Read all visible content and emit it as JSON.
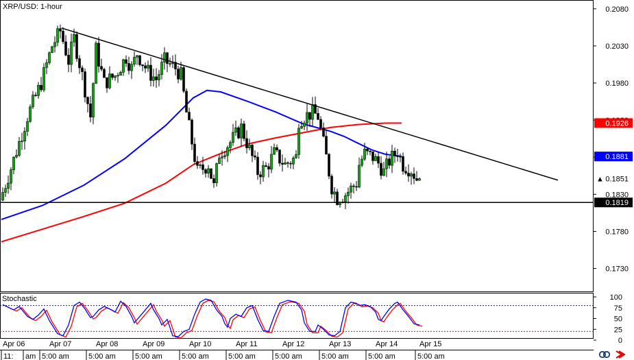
{
  "chart_data": {
    "type": "candlestick",
    "title": "XRP/USD: 1-hour",
    "price_axis": {
      "ticks": [
        0.208,
        0.203,
        0.198,
        0.193,
        0.188,
        0.183,
        0.178,
        0.173
      ],
      "tick_labels": [
        "0.2080",
        "0.2030",
        "0.1980",
        "0.1930",
        "0.1880",
        "0.1830",
        "0.1780",
        "0.1730"
      ],
      "range": [
        0.17,
        0.209
      ]
    },
    "price_tags": [
      {
        "label": "0.1926",
        "value": 0.1926,
        "bg": "#ff0000",
        "fg": "#ffffff"
      },
      {
        "label": "0.1881",
        "value": 0.1881,
        "bg": "#0000ff",
        "fg": "#ffffff"
      },
      {
        "label": "0.1851",
        "value": 0.1851,
        "bg": "#ffffff",
        "fg": "#000000",
        "marker": "▲"
      },
      {
        "label": "0.1819",
        "value": 0.1819,
        "bg": "#000000",
        "fg": "#ffffff"
      }
    ],
    "bars": 228,
    "trendline": {
      "from": {
        "bar": 22,
        "price": 0.2054
      },
      "to": {
        "bar": 203,
        "price": 0.1849
      },
      "color": "#000000"
    },
    "support": {
      "price": 0.1819,
      "color": "#000000"
    },
    "moving_averages": [
      {
        "color": "#0000ff",
        "last": 0.1881,
        "points": [
          [
            0,
            0.1796
          ],
          [
            15,
            0.1815
          ],
          [
            30,
            0.1842
          ],
          [
            45,
            0.1878
          ],
          [
            60,
            0.1923
          ],
          [
            70,
            0.196
          ],
          [
            75,
            0.197
          ],
          [
            80,
            0.1968
          ],
          [
            90,
            0.1955
          ],
          [
            100,
            0.1941
          ],
          [
            110,
            0.1925
          ],
          [
            120,
            0.1915
          ],
          [
            125,
            0.1908
          ],
          [
            135,
            0.189
          ],
          [
            140,
            0.1884
          ],
          [
            146,
            0.1881
          ]
        ]
      },
      {
        "color": "#ff0000",
        "last": 0.1926,
        "points": [
          [
            0,
            0.1766
          ],
          [
            15,
            0.1783
          ],
          [
            30,
            0.18
          ],
          [
            45,
            0.1818
          ],
          [
            60,
            0.1845
          ],
          [
            70,
            0.187
          ],
          [
            80,
            0.1885
          ],
          [
            90,
            0.1898
          ],
          [
            100,
            0.1906
          ],
          [
            110,
            0.1913
          ],
          [
            120,
            0.192
          ],
          [
            130,
            0.1924
          ],
          [
            140,
            0.1926
          ],
          [
            146,
            0.1926
          ]
        ]
      }
    ],
    "price_path": [
      [
        0,
        0.1822
      ],
      [
        4,
        0.1865
      ],
      [
        10,
        0.1935
      ],
      [
        15,
        0.198
      ],
      [
        19,
        0.203
      ],
      [
        22,
        0.205
      ],
      [
        25,
        0.201
      ],
      [
        27,
        0.204
      ],
      [
        30,
        0.199
      ],
      [
        33,
        0.1935
      ],
      [
        35,
        0.2025
      ],
      [
        38,
        0.198
      ],
      [
        42,
        0.199
      ],
      [
        46,
        0.2015
      ],
      [
        48,
        0.2
      ],
      [
        50,
        0.202
      ],
      [
        54,
        0.1995
      ],
      [
        57,
        0.1985
      ],
      [
        60,
        0.201
      ],
      [
        64,
        0.2
      ],
      [
        66,
        0.199
      ],
      [
        68,
        0.194
      ],
      [
        72,
        0.186
      ],
      [
        76,
        0.187
      ],
      [
        78,
        0.184
      ],
      [
        80,
        0.1885
      ],
      [
        84,
        0.19
      ],
      [
        88,
        0.192
      ],
      [
        91,
        0.189
      ],
      [
        94,
        0.186
      ],
      [
        97,
        0.1865
      ],
      [
        100,
        0.1885
      ],
      [
        104,
        0.187
      ],
      [
        108,
        0.188
      ],
      [
        109,
        0.193
      ],
      [
        111,
        0.1935
      ],
      [
        114,
        0.194
      ],
      [
        116,
        0.1935
      ],
      [
        119,
        0.188
      ],
      [
        121,
        0.184
      ],
      [
        123,
        0.1825
      ],
      [
        126,
        0.183
      ],
      [
        130,
        0.1845
      ],
      [
        131,
        0.187
      ],
      [
        133,
        0.1885
      ],
      [
        136,
        0.188
      ],
      [
        138,
        0.1872
      ],
      [
        140,
        0.186
      ],
      [
        142,
        0.1875
      ],
      [
        145,
        0.1888
      ],
      [
        147,
        0.187
      ],
      [
        150,
        0.1863
      ],
      [
        152,
        0.1851
      ]
    ],
    "stochastic": {
      "label": "Stochastic",
      "ticks": [
        100,
        75,
        50,
        25,
        0
      ],
      "tick_labels": [
        "100",
        "75",
        "50",
        "25",
        "0"
      ],
      "overbought": 80,
      "oversold": 20,
      "k_color": "#0000ff",
      "d_color": "#ff0000",
      "k": [
        [
          0,
          82
        ],
        [
          4,
          70
        ],
        [
          6,
          78
        ],
        [
          9,
          55
        ],
        [
          11,
          48
        ],
        [
          13,
          58
        ],
        [
          15,
          72
        ],
        [
          17,
          45
        ],
        [
          19,
          25
        ],
        [
          20,
          15
        ],
        [
          22,
          10
        ],
        [
          24,
          35
        ],
        [
          26,
          80
        ],
        [
          28,
          88
        ],
        [
          30,
          72
        ],
        [
          32,
          52
        ],
        [
          33,
          55
        ],
        [
          35,
          70
        ],
        [
          37,
          78
        ],
        [
          39,
          72
        ],
        [
          41,
          65
        ],
        [
          43,
          90
        ],
        [
          45,
          78
        ],
        [
          47,
          55
        ],
        [
          48,
          40
        ],
        [
          50,
          55
        ],
        [
          52,
          70
        ],
        [
          54,
          85
        ],
        [
          55,
          70
        ],
        [
          57,
          50
        ],
        [
          58,
          35
        ],
        [
          60,
          48
        ],
        [
          62,
          10
        ],
        [
          64,
          8
        ],
        [
          66,
          20
        ],
        [
          68,
          25
        ],
        [
          70,
          60
        ],
        [
          72,
          88
        ],
        [
          74,
          95
        ],
        [
          76,
          92
        ],
        [
          78,
          70
        ],
        [
          80,
          55
        ],
        [
          81,
          38
        ],
        [
          82,
          30
        ],
        [
          83,
          50
        ],
        [
          85,
          60
        ],
        [
          87,
          55
        ],
        [
          89,
          75
        ],
        [
          91,
          80
        ],
        [
          93,
          48
        ],
        [
          95,
          22
        ],
        [
          97,
          20
        ],
        [
          99,
          55
        ],
        [
          101,
          85
        ],
        [
          104,
          92
        ],
        [
          107,
          88
        ],
        [
          109,
          70
        ],
        [
          110,
          40
        ],
        [
          112,
          20
        ],
        [
          114,
          20
        ],
        [
          115,
          35
        ],
        [
          117,
          25
        ],
        [
          119,
          12
        ],
        [
          121,
          10
        ],
        [
          123,
          20
        ],
        [
          125,
          75
        ],
        [
          127,
          88
        ],
        [
          129,
          85
        ],
        [
          130,
          80
        ],
        [
          132,
          82
        ],
        [
          134,
          78
        ],
        [
          136,
          65
        ],
        [
          137,
          48
        ],
        [
          138,
          45
        ],
        [
          139,
          55
        ],
        [
          141,
          72
        ],
        [
          143,
          85
        ],
        [
          144,
          88
        ],
        [
          146,
          70
        ],
        [
          148,
          55
        ],
        [
          150,
          38
        ],
        [
          152,
          35
        ]
      ]
    },
    "time_axis": {
      "day_labels": [
        "Apr 06",
        "Apr 07",
        "Apr 08",
        "Apr 09",
        "Apr 10",
        "Apr 11",
        "Apr 12",
        "Apr 13",
        "Apr 14",
        "Apr 15"
      ],
      "day_bars": [
        0,
        17,
        34,
        51,
        68,
        85,
        102,
        119,
        136,
        152
      ],
      "hour_labels": [
        "11:",
        "am",
        "5:00 am",
        "5:00 am",
        "5:00 am",
        "5:00 am",
        "5:00 am",
        "5:00 am",
        "5:00 am",
        "5:00 am",
        "5:00 am"
      ],
      "hour_bars": [
        0,
        8,
        14,
        31,
        48,
        65,
        82,
        99,
        116,
        133,
        151
      ]
    },
    "corner_icons": [
      "link-icon",
      "arrow-icon"
    ]
  }
}
